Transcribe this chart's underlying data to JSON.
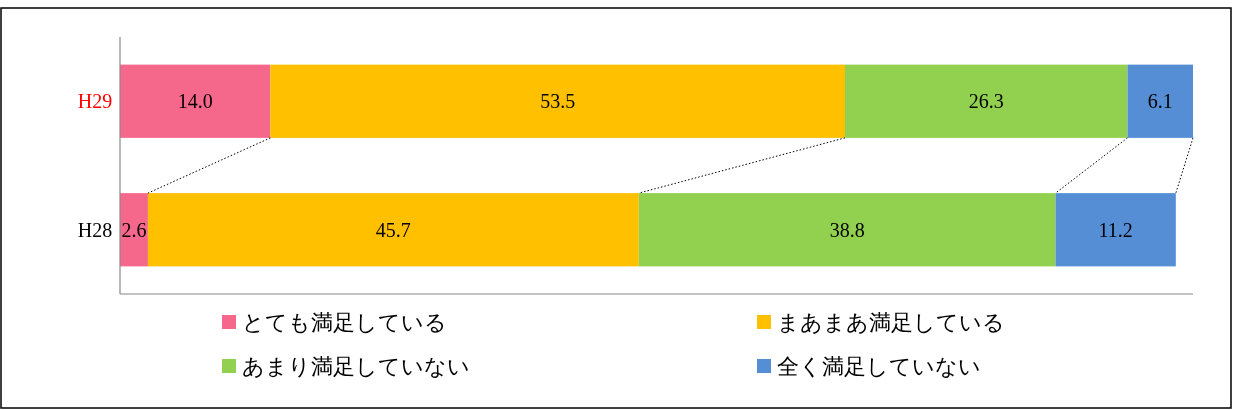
{
  "chart_data": {
    "type": "bar",
    "orientation": "horizontal",
    "stacked": true,
    "legend": "bottom",
    "categories": [
      "H29",
      "H28"
    ],
    "series": [
      {
        "name": "とても満足している",
        "color": "#f6688b",
        "values": [
          14.0,
          2.6
        ],
        "value_labels": [
          "14.0",
          "2.6"
        ]
      },
      {
        "name": "まあまあ満足している",
        "color": "#ffc000",
        "values": [
          53.5,
          45.7
        ],
        "value_labels": [
          "53.5",
          "45.7"
        ]
      },
      {
        "name": "あまり満足していない",
        "color": "#92d050",
        "values": [
          26.3,
          38.8
        ],
        "value_labels": [
          "26.3",
          "38.8"
        ]
      },
      {
        "name": "全く満足していない",
        "color": "#558ed5",
        "values": [
          6.1,
          11.2
        ],
        "value_labels": [
          "6.1",
          "11.2"
        ]
      }
    ]
  }
}
